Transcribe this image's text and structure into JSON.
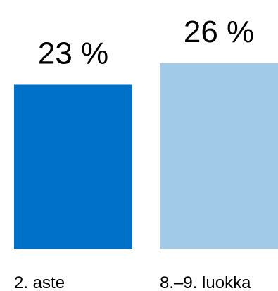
{
  "chart_data": {
    "type": "bar",
    "categories": [
      "2. aste",
      "8.–9. luokka"
    ],
    "values": [
      23,
      26
    ],
    "value_labels": [
      "23 %",
      "26 %"
    ],
    "unit": "%",
    "colors": [
      "#0071c8",
      "#a1c9e8"
    ],
    "ylim": [
      0,
      27
    ],
    "grid": false,
    "legend": "none",
    "title": "",
    "xlabel": "",
    "ylabel": ""
  }
}
